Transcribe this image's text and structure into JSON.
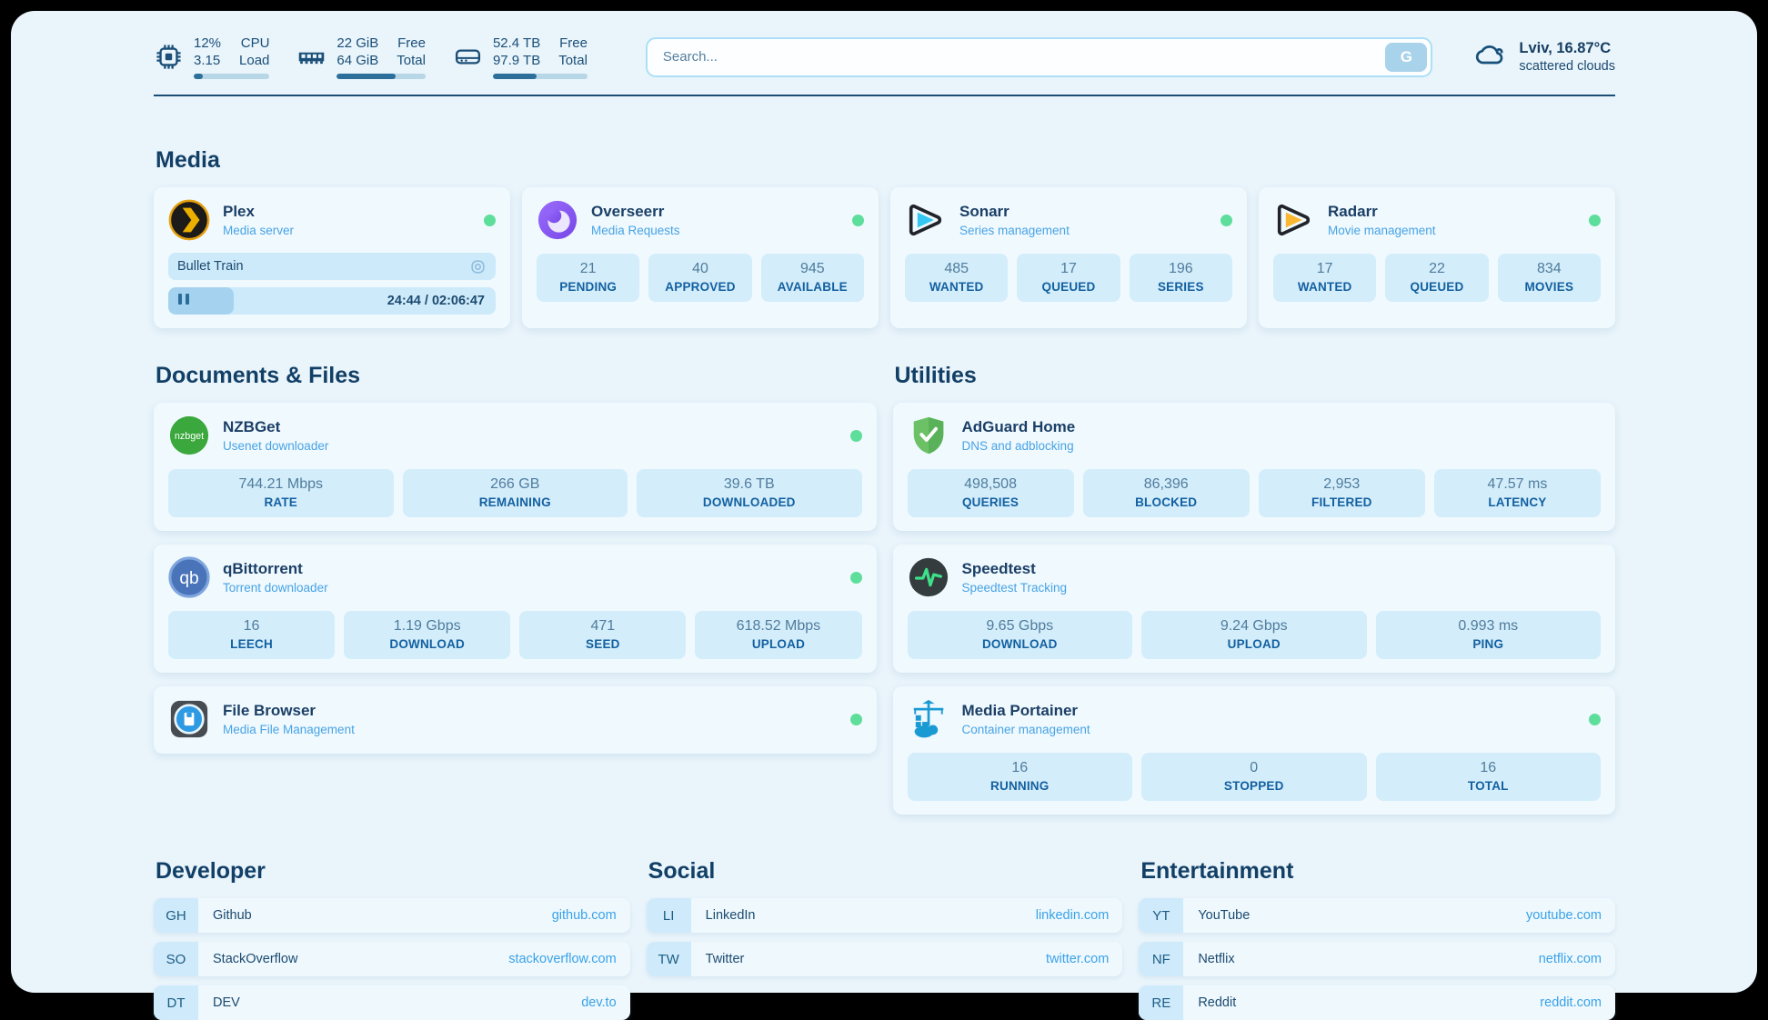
{
  "colors": {
    "status_online": "#5ede9b",
    "accent_blue": "#3ba2e8",
    "navy_text": "#17507a"
  },
  "header": {
    "hardware": [
      {
        "icon": "cpu-icon",
        "values": [
          "12%",
          "3.15"
        ],
        "labels": [
          "CPU",
          "Load"
        ],
        "percent": 12
      },
      {
        "icon": "ram-icon",
        "values": [
          "22 GiB",
          "64 GiB"
        ],
        "labels": [
          "Free",
          "Total"
        ],
        "percent": 66
      },
      {
        "icon": "disk-icon",
        "values": [
          "52.4 TB",
          "97.9 TB"
        ],
        "labels": [
          "Free",
          "Total"
        ],
        "percent": 46
      }
    ],
    "search": {
      "placeholder": "Search...",
      "button_label": "G"
    },
    "weather": {
      "location": "Lviv, 16.87°C",
      "condition": "scattered clouds"
    }
  },
  "sections": {
    "media": "Media",
    "documents": "Documents & Files",
    "utilities": "Utilities",
    "developer": "Developer",
    "social": "Social",
    "entertainment": "Entertainment"
  },
  "apps": {
    "plex": {
      "title": "Plex",
      "subtitle": "Media server",
      "status": "online",
      "media": {
        "title": "Bullet Train",
        "time": "24:44 / 02:06:47",
        "progress_percent": 20
      }
    },
    "overseerr": {
      "title": "Overseerr",
      "subtitle": "Media Requests",
      "status": "online",
      "stats": [
        {
          "value": "21",
          "label": "PENDING"
        },
        {
          "value": "40",
          "label": "APPROVED"
        },
        {
          "value": "945",
          "label": "AVAILABLE"
        }
      ]
    },
    "sonarr": {
      "title": "Sonarr",
      "subtitle": "Series management",
      "status": "online",
      "stats": [
        {
          "value": "485",
          "label": "WANTED"
        },
        {
          "value": "17",
          "label": "QUEUED"
        },
        {
          "value": "196",
          "label": "SERIES"
        }
      ]
    },
    "radarr": {
      "title": "Radarr",
      "subtitle": "Movie management",
      "status": "online",
      "stats": [
        {
          "value": "17",
          "label": "WANTED"
        },
        {
          "value": "22",
          "label": "QUEUED"
        },
        {
          "value": "834",
          "label": "MOVIES"
        }
      ]
    },
    "nzbget": {
      "title": "NZBGet",
      "subtitle": "Usenet downloader",
      "status": "online",
      "stats": [
        {
          "value": "744.21 Mbps",
          "label": "RATE"
        },
        {
          "value": "266 GB",
          "label": "REMAINING"
        },
        {
          "value": "39.6 TB",
          "label": "DOWNLOADED"
        }
      ]
    },
    "qbittorrent": {
      "title": "qBittorrent",
      "subtitle": "Torrent downloader",
      "status": "online",
      "stats": [
        {
          "value": "16",
          "label": "LEECH"
        },
        {
          "value": "1.19 Gbps",
          "label": "DOWNLOAD"
        },
        {
          "value": "471",
          "label": "SEED"
        },
        {
          "value": "618.52 Mbps",
          "label": "UPLOAD"
        }
      ]
    },
    "filebrowser": {
      "title": "File Browser",
      "subtitle": "Media File Management",
      "status": "online"
    },
    "adguard": {
      "title": "AdGuard Home",
      "subtitle": "DNS and adblocking",
      "stats": [
        {
          "value": "498,508",
          "label": "QUERIES"
        },
        {
          "value": "86,396",
          "label": "BLOCKED"
        },
        {
          "value": "2,953",
          "label": "FILTERED"
        },
        {
          "value": "47.57 ms",
          "label": "LATENCY"
        }
      ]
    },
    "speedtest": {
      "title": "Speedtest",
      "subtitle": "Speedtest Tracking",
      "stats": [
        {
          "value": "9.65 Gbps",
          "label": "DOWNLOAD"
        },
        {
          "value": "9.24 Gbps",
          "label": "UPLOAD"
        },
        {
          "value": "0.993 ms",
          "label": "PING"
        }
      ]
    },
    "portainer": {
      "title": "Media Portainer",
      "subtitle": "Container management",
      "status": "online",
      "stats": [
        {
          "value": "16",
          "label": "RUNNING"
        },
        {
          "value": "0",
          "label": "STOPPED"
        },
        {
          "value": "16",
          "label": "TOTAL"
        }
      ]
    }
  },
  "bookmarks": {
    "developer": [
      {
        "abbr": "GH",
        "name": "Github",
        "url": "github.com"
      },
      {
        "abbr": "SO",
        "name": "StackOverflow",
        "url": "stackoverflow.com"
      },
      {
        "abbr": "DT",
        "name": "DEV",
        "url": "dev.to"
      }
    ],
    "social": [
      {
        "abbr": "LI",
        "name": "LinkedIn",
        "url": "linkedin.com"
      },
      {
        "abbr": "TW",
        "name": "Twitter",
        "url": "twitter.com"
      }
    ],
    "entertainment": [
      {
        "abbr": "YT",
        "name": "YouTube",
        "url": "youtube.com"
      },
      {
        "abbr": "NF",
        "name": "Netflix",
        "url": "netflix.com"
      },
      {
        "abbr": "RE",
        "name": "Reddit",
        "url": "reddit.com"
      }
    ]
  }
}
